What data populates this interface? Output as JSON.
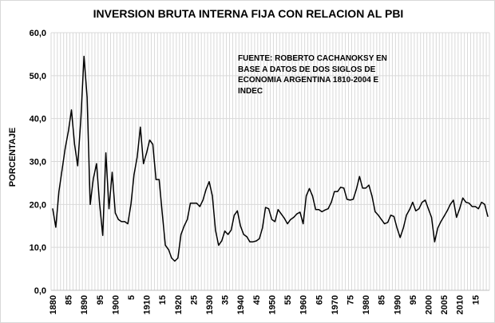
{
  "chart_data": {
    "type": "line",
    "title": "INVERSION BRUTA INTERNA FIJA CON RELACION AL PBI",
    "xlabel": "",
    "ylabel": "PORCENTAJE",
    "ylim": [
      0,
      60
    ],
    "yticks": [
      "0,0",
      "10,0",
      "20,0",
      "30,0",
      "40,0",
      "50,0",
      "60,0"
    ],
    "xlim": [
      1880,
      2019
    ],
    "xticks": [
      {
        "year": 1880,
        "label": "1880"
      },
      {
        "year": 1885,
        "label": "85"
      },
      {
        "year": 1890,
        "label": "1890"
      },
      {
        "year": 1895,
        "label": "95"
      },
      {
        "year": 1900,
        "label": "1900"
      },
      {
        "year": 1905,
        "label": "5"
      },
      {
        "year": 1910,
        "label": "1910"
      },
      {
        "year": 1915,
        "label": "15"
      },
      {
        "year": 1920,
        "label": "1920"
      },
      {
        "year": 1925,
        "label": "25"
      },
      {
        "year": 1930,
        "label": "1930"
      },
      {
        "year": 1935,
        "label": "35"
      },
      {
        "year": 1940,
        "label": "1940"
      },
      {
        "year": 1945,
        "label": "45"
      },
      {
        "year": 1950,
        "label": "1950"
      },
      {
        "year": 1955,
        "label": "55"
      },
      {
        "year": 1960,
        "label": "1960"
      },
      {
        "year": 1965,
        "label": "65"
      },
      {
        "year": 1970,
        "label": "1970"
      },
      {
        "year": 1975,
        "label": "75"
      },
      {
        "year": 1980,
        "label": "1980"
      },
      {
        "year": 1985,
        "label": "85"
      },
      {
        "year": 1990,
        "label": "1990"
      },
      {
        "year": 1995,
        "label": "95"
      },
      {
        "year": 2000,
        "label": "2000"
      },
      {
        "year": 2005,
        "label": "2005"
      },
      {
        "year": 2010,
        "label": "2010"
      },
      {
        "year": 2015,
        "label": "15"
      }
    ],
    "grid": true,
    "annotation": "FUENTE: ROBERTO CACHANOKSY EN\nBASE A DATOS DE DOS SIGLOS DE\nECONOMIA ARGENTINA 1810-2004 E\nINDEC",
    "start_year": 1880,
    "values": [
      19,
      14.7,
      23,
      28,
      33,
      37,
      42,
      34,
      29,
      40,
      54.5,
      45,
      20,
      26,
      29.5,
      20,
      12.8,
      32,
      19,
      27.5,
      18,
      16.5,
      16,
      16,
      15.5,
      20,
      27,
      31,
      38,
      29.5,
      32,
      35,
      34,
      25.8,
      25.8,
      18,
      10.5,
      9.5,
      7.5,
      6.8,
      7.5,
      13,
      15,
      16.5,
      20.3,
      20.3,
      20.3,
      19.5,
      21,
      23.5,
      25.3,
      22,
      14,
      10.5,
      11.5,
      13.8,
      13,
      14,
      17.5,
      18.5,
      15,
      13,
      12.5,
      11.3,
      11.3,
      11.5,
      12,
      14.5,
      19.3,
      19,
      16.5,
      16,
      18.8,
      17.8,
      16.8,
      15.5,
      16.5,
      17,
      17.8,
      18.2,
      15.5,
      22,
      23.7,
      22,
      18.8,
      18.8,
      18.3,
      18.7,
      19,
      20.5,
      23,
      23,
      24,
      23.8,
      21.2,
      21,
      21.2,
      23.5,
      26.5,
      23.8,
      23.8,
      24.5,
      22,
      18.3,
      17.5,
      16.5,
      15.5,
      15.8,
      17.5,
      17.2,
      14.5,
      12.3,
      14.5,
      17.5,
      18.8,
      20.5,
      18.5,
      19,
      20.5,
      21,
      19,
      17,
      11.3,
      14.5,
      16,
      17.2,
      18.5,
      20,
      21,
      17,
      19,
      21.5,
      20.5,
      20.3,
      19.5,
      19.5,
      19,
      20.5,
      20,
      17.2
    ],
    "line_color": "#000000",
    "grid_color": "#d9d9d9"
  }
}
